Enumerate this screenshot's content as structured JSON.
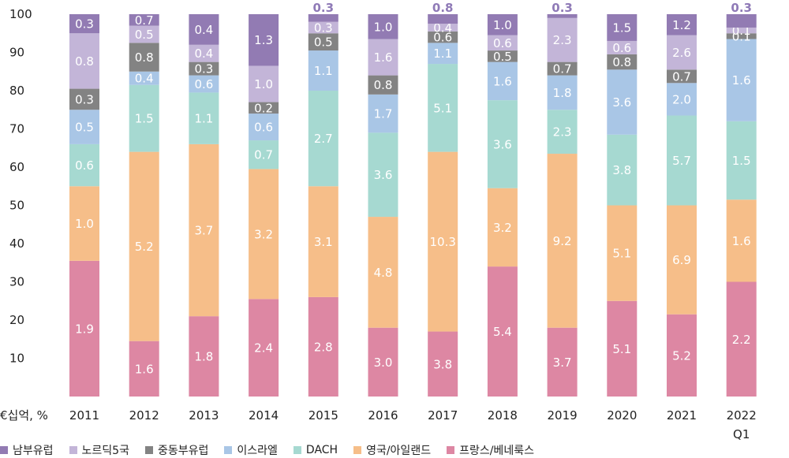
{
  "chart_data": {
    "type": "bar",
    "stacked": true,
    "unit_label": "€십억, %",
    "ylim": [
      0,
      100
    ],
    "yticks": [
      "10",
      "20",
      "30",
      "40",
      "50",
      "60",
      "70",
      "80",
      "90",
      "100"
    ],
    "categories": [
      "2011",
      "2012",
      "2013",
      "2014",
      "2015",
      "2016",
      "2017",
      "2018",
      "2019",
      "2020",
      "2021",
      "2022"
    ],
    "category_sublabels": [
      "",
      "",
      "",
      "",
      "",
      "",
      "",
      "",
      "",
      "",
      "",
      "Q1"
    ],
    "series": [
      {
        "name": "프랑스/베네룩스",
        "color": "#dd87a3",
        "shares": [
          35.5,
          14.5,
          21,
          25.5,
          26,
          18,
          17,
          34,
          18,
          25,
          21.5,
          30
        ],
        "labels": [
          "1.9",
          "1.6",
          "1.8",
          "2.4",
          "2.8",
          "3.0",
          "3.8",
          "5.4",
          "3.7",
          "5.1",
          "5.2",
          "2.2"
        ]
      },
      {
        "name": "영국/아일랜드",
        "color": "#f6be89",
        "shares": [
          19.5,
          49.5,
          45,
          34,
          29,
          29,
          47,
          20.5,
          45.5,
          25,
          28.5,
          21.5
        ],
        "labels": [
          "1.0",
          "5.2",
          "3.7",
          "3.2",
          "3.1",
          "4.8",
          "10.3",
          "3.2",
          "9.2",
          "5.1",
          "6.9",
          "1.6"
        ]
      },
      {
        "name": "DACH",
        "color": "#a6d9d1",
        "shares": [
          11,
          17.5,
          13.5,
          7.5,
          25,
          22,
          23,
          23,
          11.5,
          18.5,
          23.5,
          20.5
        ],
        "labels": [
          "0.6",
          "1.5",
          "1.1",
          "0.7",
          "2.7",
          "3.6",
          "5.1",
          "3.6",
          "2.3",
          "3.8",
          "5.7",
          "1.5"
        ]
      },
      {
        "name": "이스라엘",
        "color": "#a9c6e6",
        "shares": [
          9,
          3.5,
          4.5,
          7,
          10.5,
          10,
          5.5,
          10,
          9,
          17,
          8.5,
          21.5
        ],
        "labels": [
          "0.5",
          "0.4",
          "0.6",
          "0.6",
          "1.1",
          "1.7",
          "1.1",
          "1.6",
          "1.8",
          "3.6",
          "2.0",
          "1.6"
        ]
      },
      {
        "name": "중동부유럽",
        "color": "#838383",
        "shares": [
          5.5,
          7.5,
          3.5,
          3,
          4.5,
          5,
          3,
          3,
          3.5,
          4,
          3.5,
          1.5
        ],
        "labels": [
          "0.3",
          "0.8",
          "0.3",
          "0.2",
          "0.5",
          "0.8",
          "0.6",
          "0.5",
          "0.7",
          "0.8",
          "0.7",
          "0.1"
        ]
      },
      {
        "name": "노르딕5국",
        "color": "#c3b5d8",
        "shares": [
          14.5,
          4.5,
          4.5,
          9.5,
          3,
          9.5,
          2,
          4,
          11.5,
          3.5,
          9,
          1.5
        ],
        "labels": [
          "0.8",
          "0.5",
          "0.4",
          "1.0",
          "0.3",
          "1.6",
          "0.4",
          "0.6",
          "2.3",
          "0.6",
          "2.6",
          "0.1"
        ]
      },
      {
        "name": "남부유럽",
        "color": "#927bb3",
        "shares": [
          5,
          3,
          8,
          13.5,
          2,
          6.5,
          2.5,
          5.5,
          1,
          7,
          5.5,
          3.5
        ],
        "labels": [
          "0.3",
          "0.7",
          "0.4",
          "1.3",
          "0.3",
          "1.0",
          "0.8",
          "1.0",
          "0.3",
          "1.5",
          "1.2",
          "0.3"
        ]
      }
    ],
    "label_outside_top": [
      false,
      false,
      false,
      false,
      true,
      false,
      true,
      false,
      true,
      false,
      false,
      true
    ],
    "label_inside_text_color": {
      "중동부유럽": "#222222",
      "이스라엘": "#ffffff"
    },
    "outside_label_color": "#8f7ab7",
    "grid": false,
    "legend_position": "bottom-left"
  }
}
